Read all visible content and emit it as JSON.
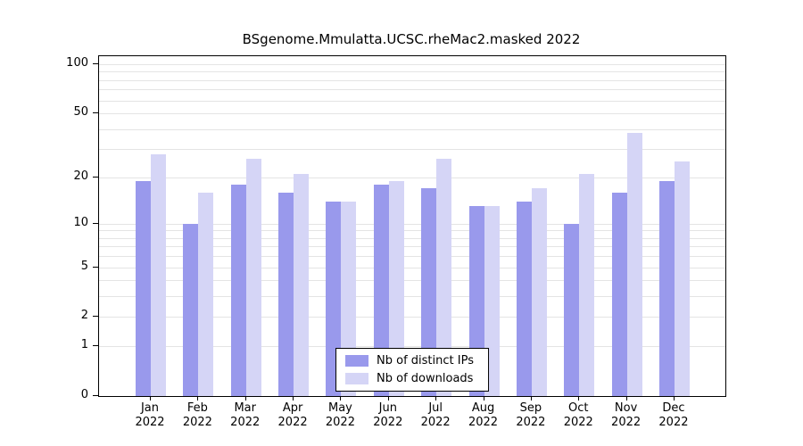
{
  "chart": {
    "title": "BSgenome.Mmulatta.UCSC.rheMac2.masked 2022",
    "legend": [
      {
        "label": "Nb of distinct IPs",
        "color": "#9999ec"
      },
      {
        "label": "Nb of downloads",
        "color": "#d5d5f6"
      }
    ]
  },
  "chart_data": {
    "type": "bar",
    "title": "BSgenome.Mmulatta.UCSC.rheMac2.masked 2022",
    "categories": [
      "Jan 2022",
      "Feb 2022",
      "Mar 2022",
      "Apr 2022",
      "May 2022",
      "Jun 2022",
      "Jul 2022",
      "Aug 2022",
      "Sep 2022",
      "Oct 2022",
      "Nov 2022",
      "Dec 2022"
    ],
    "series": [
      {
        "name": "Nb of distinct IPs",
        "color": "#9999ec",
        "values": [
          19,
          10,
          18,
          16,
          14,
          18,
          17,
          13,
          14,
          10,
          16,
          19
        ]
      },
      {
        "name": "Nb of downloads",
        "color": "#d5d5f6",
        "values": [
          28,
          16,
          26,
          21,
          14,
          19,
          26,
          13,
          17,
          21,
          38,
          25
        ]
      }
    ],
    "xlabel": "",
    "ylabel": "",
    "yscale": "log1p",
    "ylim": [
      0,
      100
    ],
    "yticks": [
      0,
      1,
      2,
      5,
      10,
      20,
      50,
      100
    ],
    "minor_gridlines": [
      3,
      4,
      6,
      7,
      8,
      9,
      30,
      40,
      60,
      70,
      80,
      90
    ],
    "grid": true,
    "legend_position": "inside-bottom-center"
  }
}
